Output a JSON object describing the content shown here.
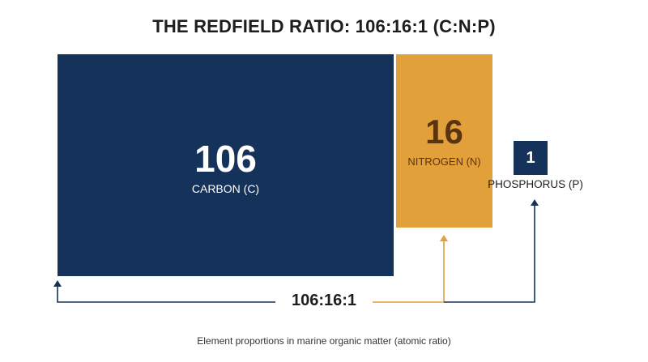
{
  "title": "THE REDFIELD RATIO: 106:16:1 (C:N:P)",
  "elements": [
    {
      "key": "carbon",
      "value": "106",
      "label": "CARBON (C)"
    },
    {
      "key": "nitrogen",
      "value": "16",
      "label": "NITROGEN (N)"
    },
    {
      "key": "phosphorus",
      "value": "1",
      "label": "PHOSPHORUS (P)"
    }
  ],
  "ratio_label": "106:16:1",
  "caption": "Element proportions in marine organic matter (atomic ratio)",
  "colors": {
    "carbon": "#14325a",
    "nitrogen": "#e2a03a",
    "phosphorus": "#14325a",
    "nitrogen_text": "#5a3411"
  }
}
